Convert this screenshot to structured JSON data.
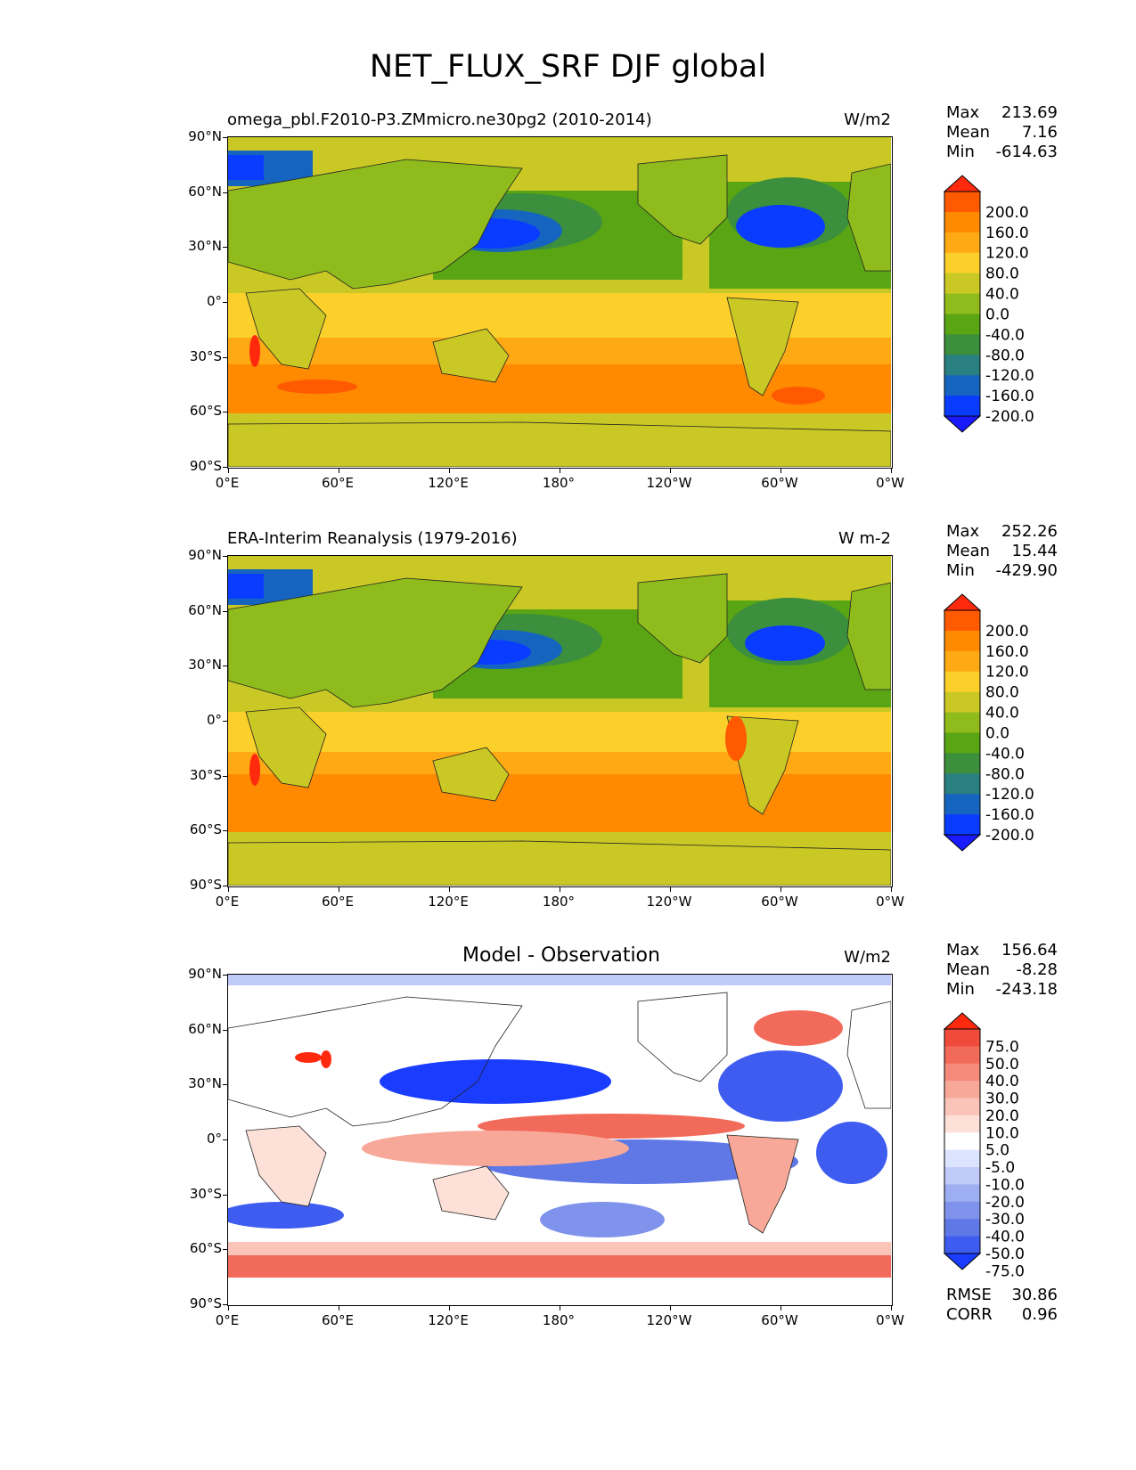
{
  "figure": {
    "title": "NET_FLUX_SRF DJF global"
  },
  "axes": {
    "lat_ticks": [
      "90°N",
      "60°N",
      "30°N",
      "0°",
      "30°S",
      "60°S",
      "90°S"
    ],
    "lon_ticks": [
      "0°E",
      "60°E",
      "120°E",
      "180°",
      "120°W",
      "60°W",
      "0°W"
    ]
  },
  "panels": [
    {
      "id": "model",
      "title": "omega_pbl.F2010-P3.ZMmicro.ne30pg2 (2010-2014)",
      "units": "W/m2",
      "stats": [
        {
          "label": "Max",
          "value": "213.69"
        },
        {
          "label": "Mean",
          "value": "7.16"
        },
        {
          "label": "Min",
          "value": "-614.63"
        }
      ],
      "colorbar": {
        "levels": [
          "200.0",
          "160.0",
          "120.0",
          "80.0",
          "40.0",
          "0.0",
          "-40.0",
          "-80.0",
          "-120.0",
          "-160.0",
          "-200.0"
        ],
        "colors": [
          "#ff2a0e",
          "#ff5a00",
          "#ff8a00",
          "#ffaa14",
          "#fbd02a",
          "#c9c824",
          "#8fbc1c",
          "#5aa514",
          "#3c8f3c",
          "#2a7f80",
          "#1565c0",
          "#0a3cff",
          "#1a1aff"
        ]
      }
    },
    {
      "id": "obs",
      "title": "ERA-Interim Reanalysis (1979-2016)",
      "units": "W m-2",
      "stats": [
        {
          "label": "Max",
          "value": "252.26"
        },
        {
          "label": "Mean",
          "value": "15.44"
        },
        {
          "label": "Min",
          "value": "-429.90"
        }
      ],
      "colorbar": {
        "levels": [
          "200.0",
          "160.0",
          "120.0",
          "80.0",
          "40.0",
          "0.0",
          "-40.0",
          "-80.0",
          "-120.0",
          "-160.0",
          "-200.0"
        ],
        "colors": [
          "#ff2a0e",
          "#ff5a00",
          "#ff8a00",
          "#ffaa14",
          "#fbd02a",
          "#c9c824",
          "#8fbc1c",
          "#5aa514",
          "#3c8f3c",
          "#2a7f80",
          "#1565c0",
          "#0a3cff",
          "#1a1aff"
        ]
      }
    },
    {
      "id": "diff",
      "title": "Model - Observation",
      "units": "W/m2",
      "stats": [
        {
          "label": "Max",
          "value": "156.64"
        },
        {
          "label": "Mean",
          "value": "-8.28"
        },
        {
          "label": "Min",
          "value": "-243.18"
        }
      ],
      "extra_stats": [
        {
          "label": "RMSE",
          "value": "30.86"
        },
        {
          "label": "CORR",
          "value": "0.96"
        }
      ],
      "colorbar": {
        "levels": [
          "75.0",
          "50.0",
          "40.0",
          "30.0",
          "20.0",
          "10.0",
          "5.0",
          "-5.0",
          "-10.0",
          "-20.0",
          "-30.0",
          "-40.0",
          "-50.0",
          "-75.0"
        ],
        "colors": [
          "#ff2a0e",
          "#f04a3a",
          "#f26a5a",
          "#f58a7a",
          "#f8a898",
          "#fbc4b8",
          "#fde0d8",
          "#ffffff",
          "#dde4ff",
          "#bfcaf8",
          "#9eaef2",
          "#7f93ec",
          "#5f78e6",
          "#3f5cf0",
          "#1a3cff"
        ]
      }
    }
  ]
}
